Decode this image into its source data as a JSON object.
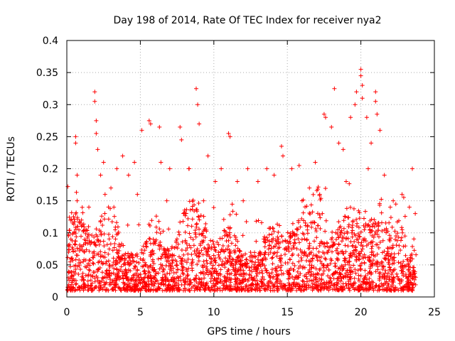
{
  "chart_data": {
    "type": "scatter",
    "title": "Day 198 of 2014, Rate Of TEC Index for receiver nya2",
    "xlabel": "GPS time / hours",
    "ylabel": "ROTI / TECUs",
    "xlim": [
      0,
      25
    ],
    "ylim": [
      0,
      0.4
    ],
    "xticks": [
      0,
      5,
      10,
      15,
      20,
      25
    ],
    "yticks": [
      0,
      0.05,
      0.1,
      0.15,
      0.2,
      0.25,
      0.3,
      0.35,
      0.4
    ],
    "xtick_labels": [
      "0",
      "5",
      "10",
      "15",
      "20",
      "25"
    ],
    "ytick_labels": [
      "0",
      "0.05",
      "0.1",
      "0.15",
      "0.2",
      "0.25",
      "0.3",
      "0.35",
      "0.4"
    ],
    "grid": true,
    "marker": "+",
    "color": "#ff0000",
    "series": [
      {
        "points": [
          [
            0.1,
            0.03
          ],
          [
            0.3,
            0.06
          ],
          [
            0.5,
            0.1
          ],
          [
            0.6,
            0.25
          ],
          [
            0.6,
            0.24
          ],
          [
            0.7,
            0.19
          ],
          [
            0.7,
            0.15
          ],
          [
            1.0,
            0.12
          ],
          [
            1.2,
            0.07
          ],
          [
            1.5,
            0.14
          ],
          [
            1.9,
            0.32
          ],
          [
            1.9,
            0.305
          ],
          [
            2.0,
            0.275
          ],
          [
            2.0,
            0.255
          ],
          [
            2.1,
            0.23
          ],
          [
            2.3,
            0.19
          ],
          [
            2.5,
            0.21
          ],
          [
            3.0,
            0.17
          ],
          [
            3.4,
            0.2
          ],
          [
            3.8,
            0.22
          ],
          [
            4.2,
            0.19
          ],
          [
            4.6,
            0.21
          ],
          [
            5.1,
            0.26
          ],
          [
            5.6,
            0.275
          ],
          [
            5.7,
            0.27
          ],
          [
            6.3,
            0.265
          ],
          [
            6.4,
            0.21
          ],
          [
            7.0,
            0.2
          ],
          [
            7.7,
            0.265
          ],
          [
            7.8,
            0.245
          ],
          [
            8.3,
            0.2
          ],
          [
            8.8,
            0.325
          ],
          [
            8.9,
            0.3
          ],
          [
            9.0,
            0.27
          ],
          [
            9.6,
            0.22
          ],
          [
            10.1,
            0.18
          ],
          [
            10.5,
            0.2
          ],
          [
            11.0,
            0.255
          ],
          [
            11.1,
            0.25
          ],
          [
            11.6,
            0.18
          ],
          [
            12.3,
            0.2
          ],
          [
            13.0,
            0.18
          ],
          [
            13.6,
            0.2
          ],
          [
            14.1,
            0.19
          ],
          [
            14.6,
            0.235
          ],
          [
            14.7,
            0.22
          ],
          [
            15.3,
            0.2
          ],
          [
            15.8,
            0.205
          ],
          [
            16.5,
            0.17
          ],
          [
            16.9,
            0.21
          ],
          [
            17.5,
            0.285
          ],
          [
            17.6,
            0.28
          ],
          [
            18.0,
            0.265
          ],
          [
            18.2,
            0.325
          ],
          [
            18.5,
            0.24
          ],
          [
            18.8,
            0.23
          ],
          [
            19.3,
            0.28
          ],
          [
            19.6,
            0.3
          ],
          [
            19.7,
            0.32
          ],
          [
            20.0,
            0.355
          ],
          [
            20.0,
            0.345
          ],
          [
            20.1,
            0.33
          ],
          [
            20.1,
            0.31
          ],
          [
            20.4,
            0.28
          ],
          [
            20.7,
            0.24
          ],
          [
            21.0,
            0.32
          ],
          [
            21.0,
            0.305
          ],
          [
            21.1,
            0.285
          ],
          [
            21.3,
            0.26
          ],
          [
            21.6,
            0.19
          ],
          [
            22.2,
            0.15
          ],
          [
            22.8,
            0.16
          ],
          [
            23.3,
            0.14
          ],
          [
            23.5,
            0.2
          ],
          [
            23.7,
            0.13
          ],
          [
            2.6,
            0.16
          ],
          [
            3.2,
            0.14
          ],
          [
            4.8,
            0.16
          ],
          [
            6.8,
            0.15
          ],
          [
            9.3,
            0.15
          ],
          [
            12.0,
            0.15
          ],
          [
            16.0,
            0.15
          ],
          [
            17.2,
            0.16
          ],
          [
            19.0,
            0.18
          ],
          [
            20.5,
            0.2
          ],
          [
            22.0,
            0.14
          ]
        ]
      }
    ]
  }
}
